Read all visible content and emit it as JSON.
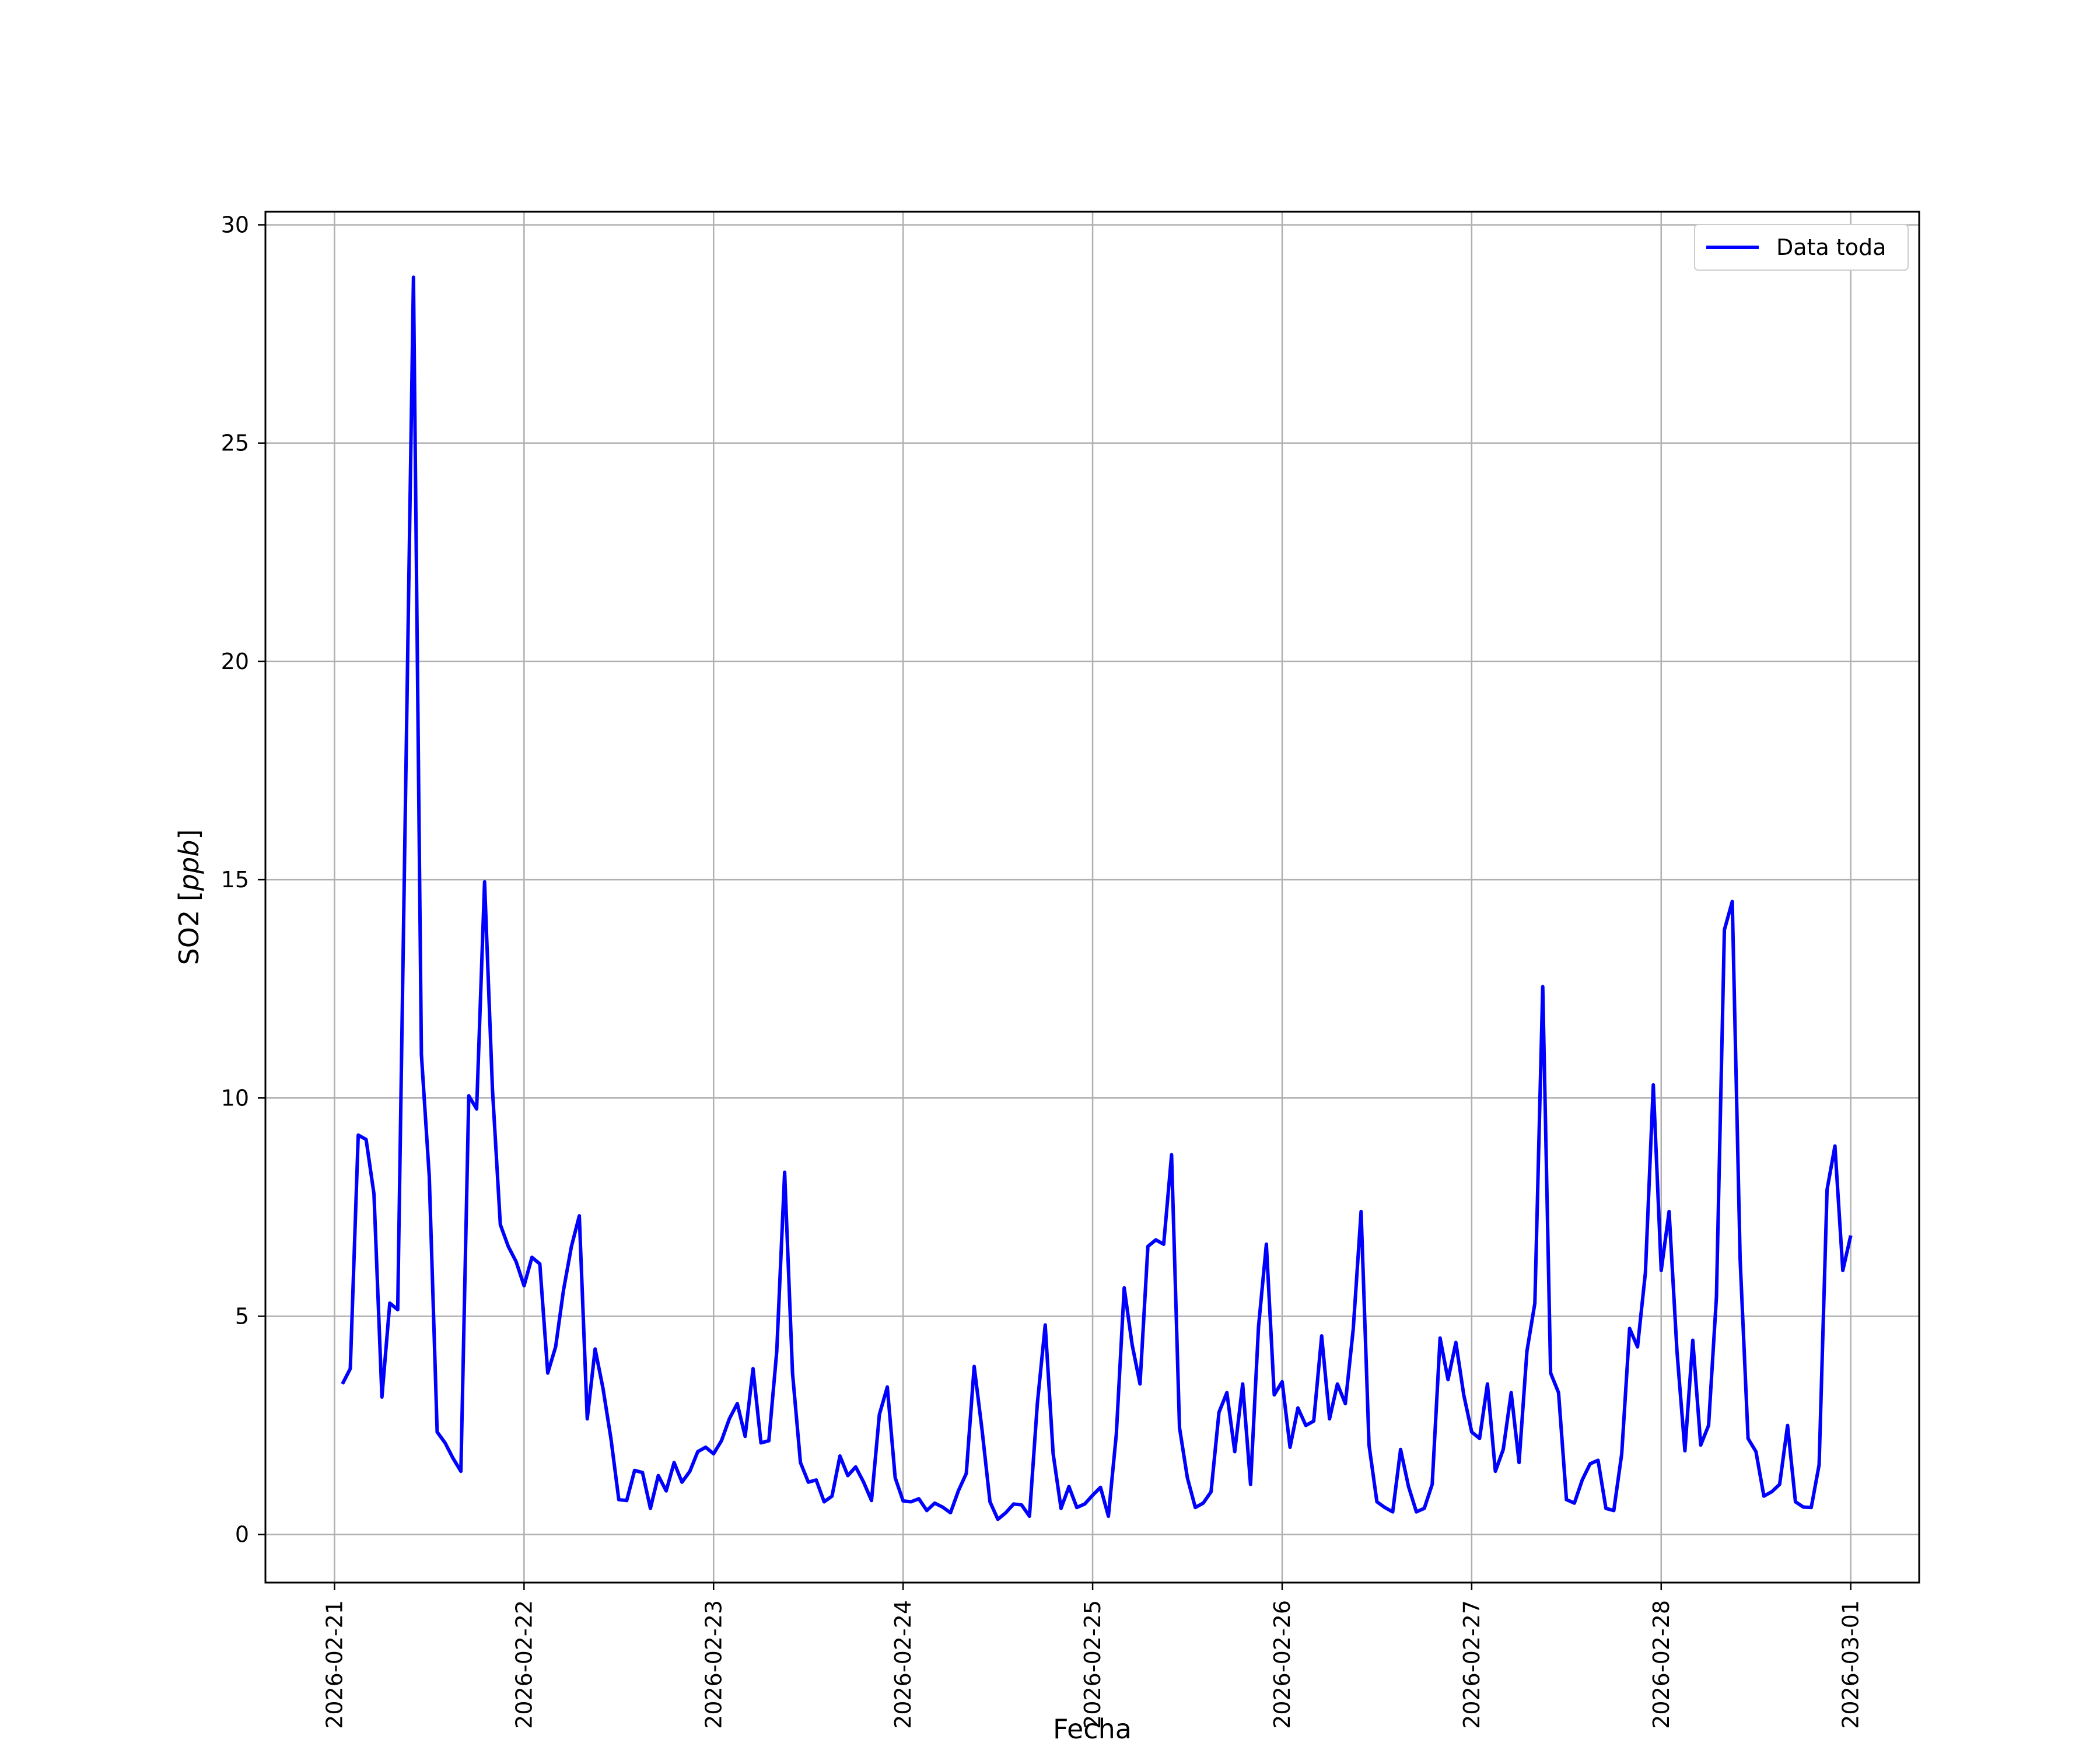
{
  "chart_data": {
    "type": "line",
    "xlabel": "Fecha",
    "ylabel": "SO2 [ppb]",
    "ylabel_prefix": "SO2 [",
    "ylabel_unit": "ppb",
    "ylabel_suffix": "]",
    "xlim": [
      "2026-02-20T15:15",
      "2026-03-01T08:40"
    ],
    "ylim": [
      -1.1,
      30.3
    ],
    "grid": true,
    "legend_position": "top-right",
    "x_ticks": [
      "2026-02-21",
      "2026-02-22",
      "2026-02-23",
      "2026-02-24",
      "2026-02-25",
      "2026-02-26",
      "2026-02-27",
      "2026-02-28",
      "2026-03-01"
    ],
    "y_ticks": [
      0,
      5,
      10,
      15,
      20,
      25,
      30
    ],
    "series": [
      {
        "name": "Data toda",
        "color": "#0000ff",
        "x": [
          "2026-02-21T01:00",
          "2026-02-21T02:00",
          "2026-02-21T03:00",
          "2026-02-21T04:00",
          "2026-02-21T05:00",
          "2026-02-21T06:00",
          "2026-02-21T07:00",
          "2026-02-21T08:00",
          "2026-02-21T09:00",
          "2026-02-21T10:00",
          "2026-02-21T11:00",
          "2026-02-21T12:00",
          "2026-02-21T13:00",
          "2026-02-21T14:00",
          "2026-02-21T15:00",
          "2026-02-21T16:00",
          "2026-02-21T17:00",
          "2026-02-21T18:00",
          "2026-02-21T19:00",
          "2026-02-21T20:00",
          "2026-02-21T21:00",
          "2026-02-21T22:00",
          "2026-02-21T23:00",
          "2026-02-22T00:00",
          "2026-02-22T01:00",
          "2026-02-22T02:00",
          "2026-02-22T03:00",
          "2026-02-22T04:00",
          "2026-02-22T05:00",
          "2026-02-22T06:00",
          "2026-02-22T07:00",
          "2026-02-22T08:00",
          "2026-02-22T09:00",
          "2026-02-22T10:00",
          "2026-02-22T11:00",
          "2026-02-22T12:00",
          "2026-02-22T13:00",
          "2026-02-22T14:00",
          "2026-02-22T15:00",
          "2026-02-22T16:00",
          "2026-02-22T17:00",
          "2026-02-22T18:00",
          "2026-02-22T19:00",
          "2026-02-22T20:00",
          "2026-02-22T21:00",
          "2026-02-22T22:00",
          "2026-02-22T23:00",
          "2026-02-23T00:00",
          "2026-02-23T01:00",
          "2026-02-23T02:00",
          "2026-02-23T03:00",
          "2026-02-23T04:00",
          "2026-02-23T05:00",
          "2026-02-23T06:00",
          "2026-02-23T07:00",
          "2026-02-23T08:00",
          "2026-02-23T09:00",
          "2026-02-23T10:00",
          "2026-02-23T11:00",
          "2026-02-23T12:00",
          "2026-02-23T13:00",
          "2026-02-23T14:00",
          "2026-02-23T15:00",
          "2026-02-23T16:00",
          "2026-02-23T17:00",
          "2026-02-23T18:00",
          "2026-02-23T19:00",
          "2026-02-23T20:00",
          "2026-02-23T21:00",
          "2026-02-23T22:00",
          "2026-02-23T23:00",
          "2026-02-24T00:00",
          "2026-02-24T01:00",
          "2026-02-24T02:00",
          "2026-02-24T03:00",
          "2026-02-24T04:00",
          "2026-02-24T05:00",
          "2026-02-24T06:00",
          "2026-02-24T07:00",
          "2026-02-24T08:00",
          "2026-02-24T09:00",
          "2026-02-24T10:00",
          "2026-02-24T11:00",
          "2026-02-24T12:00",
          "2026-02-24T13:00",
          "2026-02-24T14:00",
          "2026-02-24T15:00",
          "2026-02-24T16:00",
          "2026-02-24T17:00",
          "2026-02-24T18:00",
          "2026-02-24T19:00",
          "2026-02-24T20:00",
          "2026-02-24T21:00",
          "2026-02-24T22:00",
          "2026-02-24T23:00",
          "2026-02-25T00:00",
          "2026-02-25T01:00",
          "2026-02-25T02:00",
          "2026-02-25T03:00",
          "2026-02-25T04:00",
          "2026-02-25T05:00",
          "2026-02-25T06:00",
          "2026-02-25T07:00",
          "2026-02-25T08:00",
          "2026-02-25T09:00",
          "2026-02-25T10:00",
          "2026-02-25T11:00",
          "2026-02-25T12:00",
          "2026-02-25T13:00",
          "2026-02-25T14:00",
          "2026-02-25T15:00",
          "2026-02-25T16:00",
          "2026-02-25T17:00",
          "2026-02-25T18:00",
          "2026-02-25T19:00",
          "2026-02-25T20:00",
          "2026-02-25T21:00",
          "2026-02-25T22:00",
          "2026-02-25T23:00",
          "2026-02-26T00:00",
          "2026-02-26T01:00",
          "2026-02-26T02:00",
          "2026-02-26T03:00",
          "2026-02-26T04:00",
          "2026-02-26T05:00",
          "2026-02-26T06:00",
          "2026-02-26T07:00",
          "2026-02-26T08:00",
          "2026-02-26T09:00",
          "2026-02-26T10:00",
          "2026-02-26T11:00",
          "2026-02-26T12:00",
          "2026-02-26T13:00",
          "2026-02-26T14:00",
          "2026-02-26T15:00",
          "2026-02-26T16:00",
          "2026-02-26T17:00",
          "2026-02-26T18:00",
          "2026-02-26T19:00",
          "2026-02-26T20:00",
          "2026-02-26T21:00",
          "2026-02-26T22:00",
          "2026-02-26T23:00",
          "2026-02-27T00:00",
          "2026-02-27T01:00",
          "2026-02-27T02:00",
          "2026-02-27T03:00",
          "2026-02-27T04:00",
          "2026-02-27T05:00",
          "2026-02-27T06:00",
          "2026-02-27T07:00",
          "2026-02-27T08:00",
          "2026-02-27T09:00",
          "2026-02-27T10:00",
          "2026-02-27T11:00",
          "2026-02-27T12:00",
          "2026-02-27T13:00",
          "2026-02-27T14:00",
          "2026-02-27T15:00",
          "2026-02-27T16:00",
          "2026-02-27T17:00",
          "2026-02-27T18:00",
          "2026-02-27T19:00",
          "2026-02-27T20:00",
          "2026-02-27T21:00",
          "2026-02-27T22:00",
          "2026-02-27T23:00",
          "2026-02-28T00:00",
          "2026-02-28T01:00",
          "2026-02-28T02:00",
          "2026-02-28T03:00",
          "2026-02-28T04:00",
          "2026-02-28T05:00",
          "2026-02-28T06:00",
          "2026-02-28T07:00",
          "2026-02-28T08:00",
          "2026-02-28T09:00",
          "2026-02-28T10:00",
          "2026-02-28T11:00",
          "2026-02-28T12:00",
          "2026-02-28T13:00",
          "2026-02-28T14:00",
          "2026-02-28T15:00",
          "2026-02-28T16:00",
          "2026-02-28T17:00",
          "2026-02-28T18:00",
          "2026-02-28T19:00",
          "2026-02-28T20:00",
          "2026-02-28T21:00",
          "2026-02-28T22:00",
          "2026-02-28T23:00",
          "2026-03-01T00:00"
        ],
        "values": [
          3.45,
          3.8,
          9.15,
          9.05,
          7.8,
          3.15,
          5.3,
          5.15,
          17.0,
          28.8,
          11.0,
          8.2,
          2.35,
          2.1,
          1.75,
          1.45,
          10.05,
          9.75,
          14.95,
          10.2,
          7.1,
          6.6,
          6.25,
          5.7,
          6.35,
          6.2,
          3.7,
          4.3,
          5.6,
          6.6,
          7.3,
          2.65,
          4.25,
          3.35,
          2.2,
          0.8,
          0.78,
          1.47,
          1.42,
          0.6,
          1.35,
          1.0,
          1.65,
          1.2,
          1.45,
          1.9,
          2.0,
          1.85,
          2.15,
          2.65,
          3.0,
          2.25,
          3.8,
          2.1,
          2.15,
          4.2,
          8.3,
          3.7,
          1.65,
          1.2,
          1.25,
          0.75,
          0.88,
          1.8,
          1.35,
          1.55,
          1.2,
          0.78,
          2.75,
          3.38,
          1.3,
          0.77,
          0.75,
          0.82,
          0.55,
          0.72,
          0.63,
          0.5,
          1.0,
          1.4,
          3.85,
          2.4,
          0.75,
          0.35,
          0.5,
          0.7,
          0.68,
          0.42,
          3.0,
          4.8,
          1.85,
          0.6,
          1.1,
          0.62,
          0.7,
          0.9,
          1.08,
          0.42,
          2.3,
          5.65,
          4.35,
          3.45,
          6.6,
          6.75,
          6.65,
          8.7,
          2.45,
          1.3,
          0.62,
          0.72,
          0.98,
          2.8,
          3.25,
          1.9,
          3.45,
          1.15,
          4.75,
          6.65,
          3.2,
          3.5,
          2.0,
          2.9,
          2.5,
          2.6,
          4.55,
          2.65,
          3.45,
          3.0,
          4.7,
          7.4,
          2.05,
          0.75,
          0.62,
          0.52,
          1.95,
          1.1,
          0.52,
          0.6,
          1.15,
          4.5,
          3.55,
          4.4,
          3.2,
          2.35,
          2.2,
          3.45,
          1.45,
          1.95,
          3.25,
          1.65,
          4.2,
          5.3,
          12.55,
          3.7,
          3.25,
          0.8,
          0.72,
          1.25,
          1.62,
          1.7,
          0.6,
          0.55,
          1.85,
          4.72,
          4.3,
          6.0,
          10.3,
          6.05,
          7.4,
          4.2,
          1.92,
          4.45,
          2.05,
          2.5,
          5.45,
          13.85,
          14.5,
          6.3,
          2.2,
          1.9,
          0.88,
          0.98,
          1.15,
          2.5,
          0.75,
          0.63,
          0.62,
          1.6,
          7.9,
          8.9,
          6.05,
          6.85
        ]
      }
    ]
  }
}
